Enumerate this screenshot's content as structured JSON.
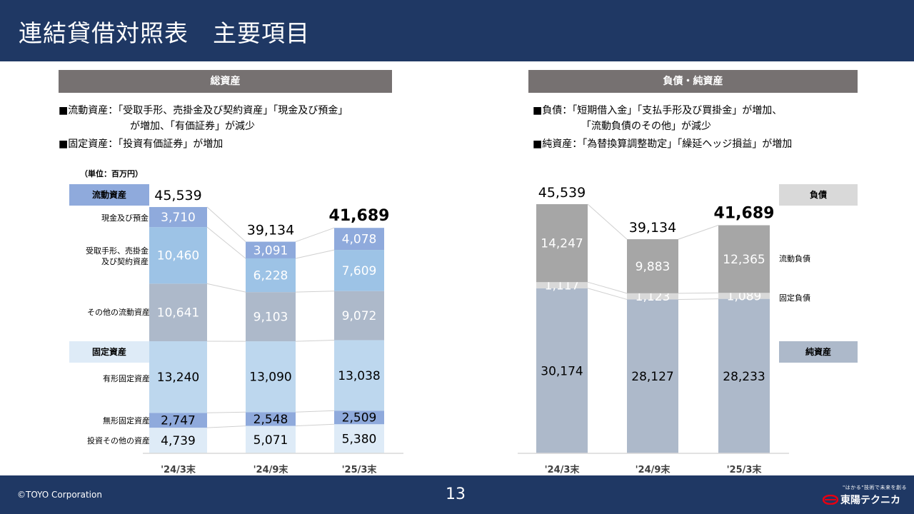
{
  "header": {
    "title": "連結貸借対照表　主要項目"
  },
  "left_panel": {
    "section_title": "総資産",
    "notes": [
      "■流動資産：「受取手形、売掛金及び契約資産」「現金及び預金」",
      "が増加、「有価証券」が減少",
      "■固定資産：「投資有価証券」が増加"
    ],
    "unit_label": "（単位：百万円）",
    "group_current": "流動資産",
    "group_fixed": "固定資産",
    "row_labels": {
      "cash": "現金及び預金",
      "receivables_1": "受取手形、売掛金",
      "receivables_2": "及び契約資産",
      "other_current": "その他の流動資産",
      "tangible": "有形固定資産",
      "intangible": "無形固定資産",
      "investments": "投資その他の資産"
    }
  },
  "right_panel": {
    "section_title": "負債・純資産",
    "notes": [
      "■負債：「短期借入金」「支払手形及び買掛金」が増加、",
      "「流動負債のその他」が減少",
      "■純資産：「為替換算調整勘定」「繰延ヘッジ損益」が増加"
    ],
    "group_liabilities": "負債",
    "group_net_assets": "純資産",
    "row_labels": {
      "current_liabilities": "流動負債",
      "fixed_liabilities": "固定負債"
    }
  },
  "chart_data": [
    {
      "type": "bar",
      "stacked": true,
      "title": "総資産",
      "categories": [
        "'24/3末",
        "'24/9末",
        "'25/3末"
      ],
      "series": [
        {
          "name": "投資その他の資産",
          "values": [
            4739,
            5071,
            5380
          ],
          "color": "#deebf7"
        },
        {
          "name": "無形固定資産",
          "values": [
            2747,
            2548,
            2509
          ],
          "color": "#8faadc"
        },
        {
          "name": "有形固定資産",
          "values": [
            13240,
            13090,
            13038
          ],
          "color": "#bdd7ee"
        },
        {
          "name": "その他の流動資産",
          "values": [
            10641,
            9103,
            9072
          ],
          "color": "#adb9ca"
        },
        {
          "name": "受取手形、売掛金及び契約資産",
          "values": [
            10460,
            6228,
            7609
          ],
          "color": "#9dc3e6"
        },
        {
          "name": "現金及び預金",
          "values": [
            3710,
            3091,
            4078
          ],
          "color": "#8faadc"
        }
      ],
      "totals": [
        "45,539",
        "39,134",
        "41,689"
      ],
      "labels": [
        [
          "4,739",
          "5,071",
          "5,380"
        ],
        [
          "2,747",
          "2,548",
          "2,509"
        ],
        [
          "13,240",
          "13,090",
          "13,038"
        ],
        [
          "10,641",
          "9,103",
          "9,072"
        ],
        [
          "10,460",
          "6,228",
          "7,609"
        ],
        [
          "3,710",
          "3,091",
          "4,078"
        ]
      ],
      "label_colors": [
        "#000000",
        "#000000",
        "#000000",
        "#ffffff",
        "#ffffff",
        "#ffffff"
      ],
      "ylim": [
        0,
        50000
      ]
    },
    {
      "type": "bar",
      "stacked": true,
      "title": "負債・純資産",
      "categories": [
        "'24/3末",
        "'24/9末",
        "'25/3末"
      ],
      "series": [
        {
          "name": "純資産",
          "values": [
            30174,
            28127,
            28233
          ],
          "color": "#adb9ca"
        },
        {
          "name": "固定負債",
          "values": [
            1117,
            1123,
            1089
          ],
          "color": "#d9d9d9"
        },
        {
          "name": "流動負債",
          "values": [
            14247,
            9883,
            12365
          ],
          "color": "#a6a6a6"
        }
      ],
      "totals": [
        "45,539",
        "39,134",
        "41,689"
      ],
      "labels": [
        [
          "30,174",
          "28,127",
          "28,233"
        ],
        [
          "1,117",
          "1,123",
          "1,089"
        ],
        [
          "14,247",
          "9,883",
          "12,365"
        ]
      ],
      "label_colors": [
        "#000000",
        "#ffffff",
        "#ffffff"
      ],
      "ylim": [
        0,
        50000
      ]
    }
  ],
  "footer": {
    "copyright": "©TOYO Corporation",
    "page_number": "13",
    "logo_tagline": "\"はかる\"技術で未来を創る",
    "logo_name": "東陽テクニカ"
  }
}
